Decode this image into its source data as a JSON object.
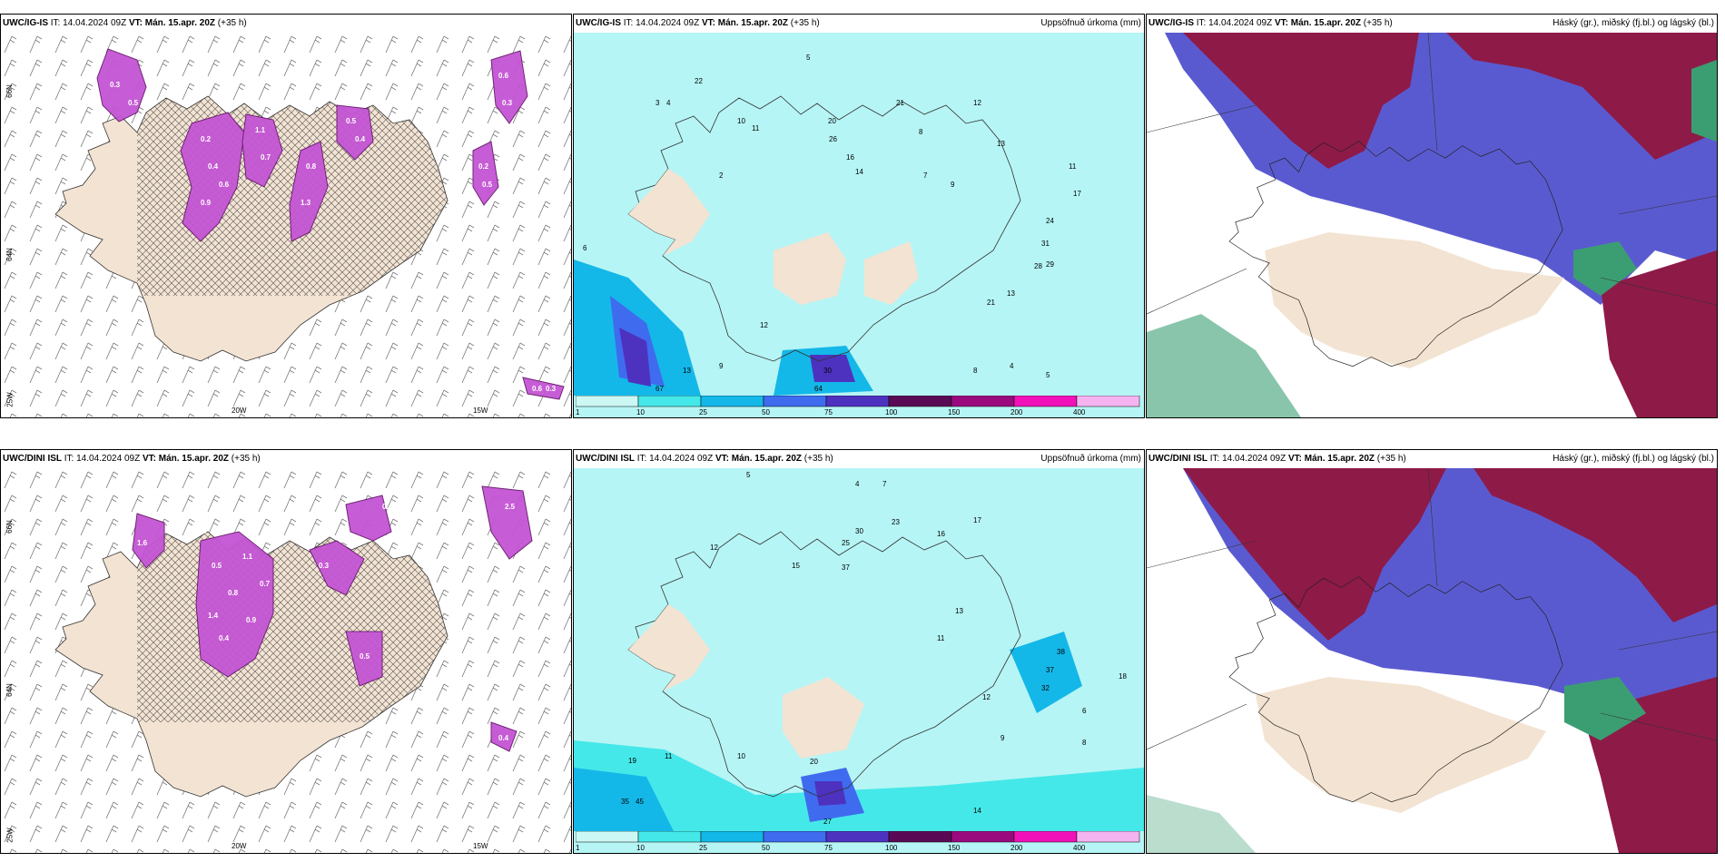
{
  "rows": [
    {
      "model": "UWC/IG-IS",
      "it_label": "IT:",
      "it_value": "14.04.2024 09Z",
      "vt_label": "VT:",
      "vt_value": "Mán. 15.apr. 20Z",
      "lead": "(+35 h)"
    },
    {
      "model": "UWC/DINI ISL",
      "it_label": "IT:",
      "it_value": "14.04.2024 09Z",
      "vt_label": "VT:",
      "vt_value": "Mán. 15.apr. 20Z",
      "lead": "(+35 h)"
    }
  ],
  "precip_title": "Uppsöfnuð úrkoma (mm)",
  "cloud_title": "Háský (gr.), miðský (fj.bl.) og lágský (bl.)",
  "axis_labels": {
    "lat_66": "66N",
    "lat_64": "64N",
    "lon_25": "25W",
    "lon_20": "20W",
    "lon_15": "15W"
  },
  "colorbar_ticks": [
    "1",
    "10",
    "25",
    "50",
    "75",
    "100",
    "150",
    "200",
    "400"
  ],
  "colorbar_colors": [
    "#cbf8f4",
    "#45e8e8",
    "#14b8e8",
    "#3f6bef",
    "#4d32c0",
    "#5a0a55",
    "#9a0a7e",
    "#f012b8",
    "#f5b4f0"
  ],
  "colors": {
    "land": "#f3e3d2",
    "sea_precip": "#b6f5f5",
    "high_cloud": "#8e1a48",
    "mid_cloud": "#5a5ad0",
    "low_cloud": "#3b9e72",
    "snow": "#c455d4"
  },
  "snow_labels_top": [
    "0.3",
    "0.5",
    "0.2",
    "0.4",
    "0.6",
    "0.9",
    "1.1",
    "0.7",
    "0.8",
    "1.3",
    "0.5",
    "0.4",
    "0.6",
    "0.3",
    "0.2",
    "0.5",
    "0.6",
    "0.3"
  ],
  "snow_labels_bottom": [
    "0.2",
    "0.4",
    "1.6",
    "2.5",
    "0.5",
    "0.8",
    "1.1",
    "0.4",
    "0.3",
    "0.9",
    "0.7",
    "1.4",
    "0.5",
    "0.4"
  ],
  "precip_labels_top": [
    "3",
    "4",
    "5",
    "2",
    "10",
    "11",
    "22",
    "21",
    "20",
    "12",
    "13",
    "26",
    "16",
    "14",
    "8",
    "7",
    "9",
    "11",
    "6",
    "24",
    "31",
    "17",
    "28",
    "29",
    "13",
    "9",
    "8",
    "12",
    "21",
    "4",
    "5",
    "13",
    "30",
    "64",
    "67"
  ],
  "precip_labels_bottom": [
    "5",
    "4",
    "7",
    "12",
    "25",
    "30",
    "37",
    "23",
    "17",
    "16",
    "13",
    "11",
    "15",
    "19",
    "11",
    "10",
    "45",
    "35",
    "20",
    "32",
    "38",
    "37",
    "12",
    "6",
    "9",
    "8",
    "18",
    "14",
    "27"
  ]
}
